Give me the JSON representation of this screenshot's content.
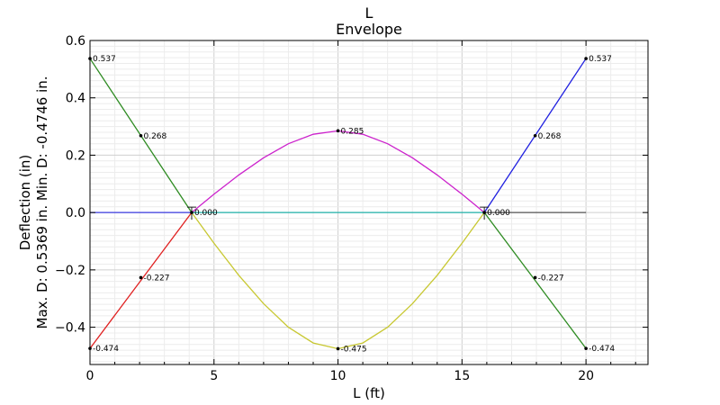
{
  "chart_data": {
    "type": "line",
    "title": "L",
    "subtitle": "Envelope",
    "xlabel": "L (ft)",
    "ylabel": "Max. D: 0.5369 in.  Min. D: -0.4746 in.",
    "ylabel2": "Deflection (in)",
    "xlim": [
      0,
      22.5
    ],
    "ylim": [
      -0.53,
      0.6
    ],
    "xticks": [
      0,
      5,
      10,
      15,
      20
    ],
    "xtick_labels": [
      "0",
      "5",
      "10",
      "15",
      "20"
    ],
    "yticks": [
      -0.4,
      -0.2,
      0.0,
      0.2,
      0.4,
      0.6
    ],
    "ytick_labels": [
      "−0.4",
      "−0.2",
      "0.0",
      "0.2",
      "0.4",
      "0.6"
    ],
    "grid": true,
    "supports_x": [
      4.1,
      15.9
    ],
    "series": [
      {
        "color": "#2e8b22",
        "x": [
          0,
          4.1
        ],
        "y": [
          0.537,
          0
        ]
      },
      {
        "color": "#2e8b22",
        "x": [
          15.9,
          20
        ],
        "y": [
          0,
          -0.474
        ]
      },
      {
        "color": "#e02020",
        "x": [
          0,
          4.1
        ],
        "y": [
          -0.474,
          0
        ]
      },
      {
        "color": "#2020e0",
        "x": [
          15.9,
          20
        ],
        "y": [
          0,
          0.537
        ]
      },
      {
        "color": "#3a3adf",
        "x": [
          0,
          4.1
        ],
        "y": [
          0,
          0
        ]
      },
      {
        "color": "#20b2aa",
        "x": [
          4.1,
          15.9
        ],
        "y": [
          0,
          0
        ]
      },
      {
        "color": "#555555",
        "x": [
          15.9,
          20
        ],
        "y": [
          0,
          0
        ]
      },
      {
        "color": "#cc22cc",
        "x": [
          4.1,
          5,
          6,
          7,
          8,
          9,
          10,
          11,
          12,
          13,
          14,
          15,
          15.9
        ],
        "y": [
          0,
          0.064,
          0.131,
          0.191,
          0.24,
          0.273,
          0.285,
          0.273,
          0.24,
          0.191,
          0.131,
          0.064,
          0
        ]
      },
      {
        "color": "#c8c832",
        "x": [
          4.1,
          5,
          6,
          7,
          8,
          9,
          10,
          11,
          12,
          13,
          14,
          15,
          15.9
        ],
        "y": [
          0,
          -0.107,
          -0.219,
          -0.318,
          -0.4,
          -0.455,
          -0.475,
          -0.455,
          -0.4,
          -0.318,
          -0.219,
          -0.107,
          0
        ]
      }
    ],
    "annotations": [
      {
        "x": 0,
        "y": 0.537,
        "text": "0.537"
      },
      {
        "x": 2.05,
        "y": 0.268,
        "text": "0.268"
      },
      {
        "x": 2.05,
        "y": -0.227,
        "text": "-0.227"
      },
      {
        "x": 0,
        "y": -0.474,
        "text": "-0.474"
      },
      {
        "x": 4.1,
        "y": 0,
        "text": "0.000"
      },
      {
        "x": 10,
        "y": 0.285,
        "text": "0.285"
      },
      {
        "x": 10,
        "y": -0.475,
        "text": "-0.475"
      },
      {
        "x": 15.9,
        "y": 0,
        "text": "0.000"
      },
      {
        "x": 17.95,
        "y": 0.268,
        "text": "0.268"
      },
      {
        "x": 17.95,
        "y": -0.227,
        "text": "-0.227"
      },
      {
        "x": 20,
        "y": 0.537,
        "text": "0.537"
      },
      {
        "x": 20,
        "y": -0.474,
        "text": "-0.474"
      }
    ]
  }
}
